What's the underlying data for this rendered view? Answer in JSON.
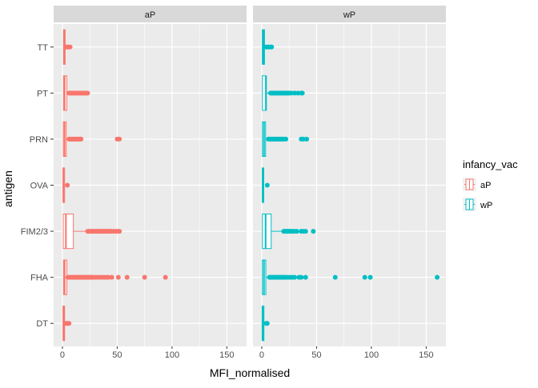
{
  "chart_data": {
    "type": "boxplot",
    "xlabel": "MFI_normalised",
    "ylabel": "antigen",
    "xlim": [
      -8,
      168
    ],
    "x_ticks": [
      0,
      50,
      100,
      150
    ],
    "categories": [
      "DT",
      "FHA",
      "FIM2/3",
      "OVA",
      "PRN",
      "PT",
      "TT"
    ],
    "legend": {
      "title": "infancy_vac",
      "position": "right",
      "entries": [
        "aP",
        "wP"
      ]
    },
    "colors": {
      "aP": "#F8766D",
      "wP": "#00BFC4",
      "panel": "#EBEBEB",
      "strip": "#D9D9D9",
      "grid": "#FFFFFF"
    },
    "grid": true,
    "facets": [
      {
        "label": "aP",
        "series": "aP",
        "boxes": [
          {
            "antigen": "DT",
            "q1": 0.5,
            "median": 1.2,
            "q3": 2,
            "whisker_high": 2.5,
            "outliers": [
              3,
              4,
              5,
              6
            ]
          },
          {
            "antigen": "FHA",
            "q1": 1,
            "median": 2,
            "q3": 4,
            "whisker_high": 5,
            "outliers": [
              5,
              6,
              7,
              8,
              9,
              10,
              11,
              12,
              13,
              14,
              15,
              16,
              17,
              18,
              19,
              20,
              21,
              22,
              23,
              24,
              25,
              26,
              27,
              28,
              30,
              32,
              34,
              36,
              38,
              40,
              42,
              45,
              51,
              59,
              75,
              94
            ]
          },
          {
            "antigen": "FIM2/3",
            "q1": 0.8,
            "median": 3.2,
            "q3": 10,
            "whisker_high": 22,
            "outliers": [
              23,
              24,
              25,
              26,
              27,
              28,
              29,
              30,
              31,
              32,
              33,
              34,
              35,
              36,
              37,
              38,
              39,
              40,
              41,
              42,
              43,
              44,
              45,
              47,
              49,
              51,
              52
            ]
          },
          {
            "antigen": "OVA",
            "q1": 0.5,
            "median": 1,
            "q3": 2,
            "whisker_high": 2.5,
            "outliers": [
              4.5
            ]
          },
          {
            "antigen": "PRN",
            "q1": 0.8,
            "median": 2,
            "q3": 3.5,
            "whisker_high": 5,
            "outliers": [
              6,
              7,
              8,
              9,
              10,
              11,
              12,
              13,
              14,
              15,
              16,
              17,
              50,
              52
            ]
          },
          {
            "antigen": "PT",
            "q1": 1,
            "median": 2,
            "q3": 4,
            "whisker_high": 5,
            "outliers": [
              6,
              7,
              8,
              9,
              10,
              11,
              12,
              13,
              14,
              15,
              16,
              17,
              18,
              19,
              20,
              21,
              22,
              23
            ]
          },
          {
            "antigen": "TT",
            "q1": 1,
            "median": 1.5,
            "q3": 2.5,
            "whisker_high": 3,
            "outliers": [
              3,
              4,
              5,
              6,
              7
            ]
          }
        ]
      },
      {
        "label": "wP",
        "series": "wP",
        "boxes": [
          {
            "antigen": "DT",
            "q1": 0.3,
            "median": 1,
            "q3": 2,
            "whisker_high": 2.5,
            "outliers": [
              4,
              5
            ]
          },
          {
            "antigen": "FHA",
            "q1": 0.5,
            "median": 2,
            "q3": 3.7,
            "whisker_high": 6,
            "outliers": [
              7,
              8,
              9,
              10,
              11,
              12,
              13,
              14,
              15,
              16,
              17,
              18,
              19,
              20,
              21,
              22,
              24,
              26,
              28,
              30,
              34,
              36,
              40,
              67,
              94,
              99,
              160
            ]
          },
          {
            "antigen": "FIM2/3",
            "q1": 0.5,
            "median": 3.5,
            "q3": 8.6,
            "whisker_high": 20,
            "outliers": [
              20,
              21,
              22,
              23,
              24,
              25,
              26,
              27,
              28,
              30,
              32,
              36,
              38,
              40,
              47
            ]
          },
          {
            "antigen": "OVA",
            "q1": 0.5,
            "median": 1,
            "q3": 1.8,
            "whisker_high": 2.2,
            "outliers": [
              5
            ]
          },
          {
            "antigen": "PRN",
            "q1": 0.5,
            "median": 2,
            "q3": 3.5,
            "whisker_high": 5,
            "outliers": [
              6,
              7,
              8,
              9,
              10,
              11,
              12,
              13,
              14,
              15,
              16,
              17,
              18,
              19,
              20,
              22,
              36,
              38,
              41
            ]
          },
          {
            "antigen": "PT",
            "q1": 0.5,
            "median": 3.8,
            "q3": 4.2,
            "whisker_high": 7,
            "outliers": [
              8,
              9,
              10,
              11,
              12,
              13,
              14,
              15,
              16,
              17,
              18,
              19,
              20,
              21,
              22,
              23,
              24,
              25,
              27,
              30,
              33,
              36,
              37
            ]
          },
          {
            "antigen": "TT",
            "q1": 0.5,
            "median": 1.5,
            "q3": 2.5,
            "whisker_high": 3.5,
            "outliers": [
              4,
              5,
              6,
              7,
              8,
              9
            ]
          }
        ]
      }
    ]
  }
}
